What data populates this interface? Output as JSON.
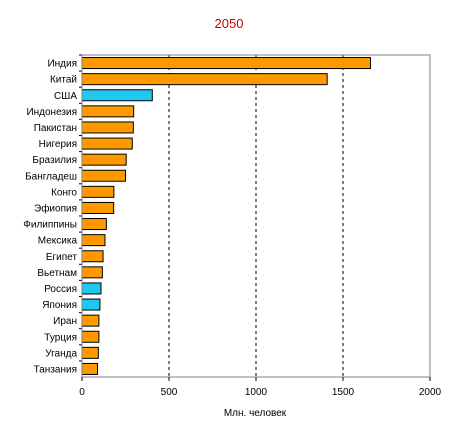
{
  "chart_data": {
    "type": "bar",
    "orientation": "horizontal",
    "title": "2050",
    "xlabel": "Млн. человек",
    "ylabel": "",
    "xlim": [
      0,
      2000
    ],
    "xticks": [
      0,
      500,
      1000,
      1500,
      2000
    ],
    "grid": "vertical dashed",
    "categories": [
      "Индия",
      "Китай",
      "США",
      "Индонезия",
      "Пакистан",
      "Нигерия",
      "Бразилия",
      "Бангладеш",
      "Конго",
      "Эфиопия",
      "Филиппины",
      "Мексика",
      "Египет",
      "Вьетнам",
      "Россия",
      "Япония",
      "Иран",
      "Турция",
      "Уганда",
      "Танзания"
    ],
    "values": [
      1658,
      1409,
      404,
      297,
      295,
      289,
      254,
      250,
      183,
      182,
      140,
      132,
      121,
      117,
      109,
      103,
      97,
      97,
      94,
      89
    ],
    "highlight_categories": [
      "США",
      "Россия",
      "Япония"
    ],
    "colors": {
      "default": "#ff9900",
      "highlight": "#1ec8f0",
      "title": "#cc0000",
      "border": "#000000"
    }
  }
}
